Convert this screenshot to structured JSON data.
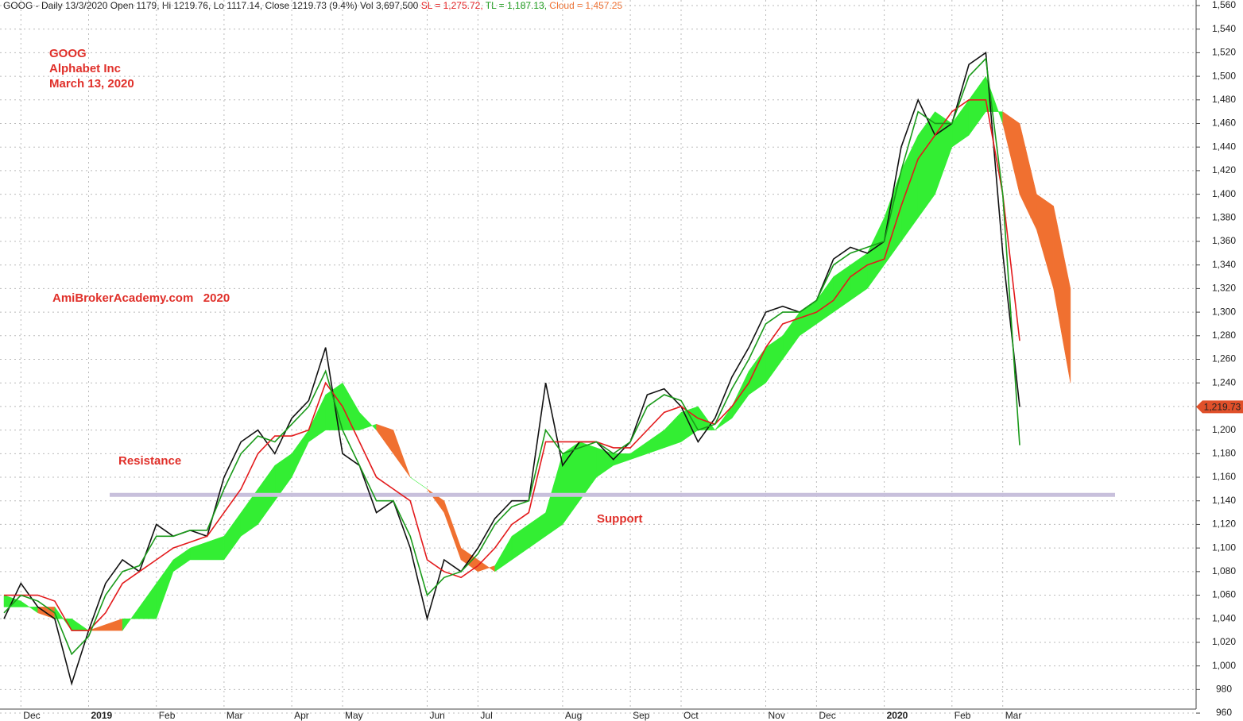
{
  "chart_data": {
    "type": "line",
    "title": "GOOG - Daily 13/3/2020 Open 1179, Hi 1219.76, Lo 1117.14, Close 1219.73 (9.4%) Vol 3,697,500",
    "annotations": [
      "GOOG",
      "Alphabet Inc",
      "March 13, 2020",
      "AmiBrokerAcademy.com   2020",
      "Resistance",
      "Support"
    ],
    "categories": [
      null,
      "Dec",
      null,
      null,
      null,
      "2019",
      null,
      null,
      null,
      "Feb",
      null,
      null,
      null,
      "Mar",
      null,
      null,
      null,
      "Apr",
      null,
      null,
      "May",
      null,
      null,
      null,
      null,
      "Jun",
      null,
      null,
      "Jul",
      null,
      null,
      null,
      null,
      "Aug",
      null,
      null,
      null,
      "Sep",
      null,
      null,
      "Oct",
      null,
      null,
      null,
      null,
      "Nov",
      null,
      null,
      "Dec",
      null,
      null,
      null,
      "2020",
      null,
      null,
      null,
      "Feb",
      null,
      null,
      "Mar",
      null,
      null,
      null,
      null
    ],
    "price": {
      "color": "#111111",
      "values": [
        1040,
        1070,
        1050,
        1040,
        985,
        1030,
        1070,
        1090,
        1080,
        1120,
        1110,
        1115,
        1110,
        1160,
        1190,
        1200,
        1180,
        1210,
        1225,
        1270,
        1180,
        1170,
        1130,
        1140,
        1100,
        1040,
        1090,
        1080,
        1100,
        1125,
        1140,
        1140,
        1240,
        1170,
        1190,
        1190,
        1175,
        1190,
        1230,
        1235,
        1220,
        1190,
        1210,
        1245,
        1270,
        1300,
        1305,
        1300,
        1310,
        1345,
        1355,
        1350,
        1360,
        1440,
        1480,
        1450,
        1460,
        1510,
        1520,
        1350,
        1219.73,
        null,
        null,
        null
      ],
      "last_label": "1,219.73",
      "last_color": "#e0502a"
    },
    "series": [
      {
        "name": "SL = 1,275.72,",
        "color": "#e31a1c",
        "values": [
          1060,
          1060,
          1060,
          1055,
          1030,
          1030,
          1045,
          1070,
          1080,
          1090,
          1100,
          1105,
          1110,
          1130,
          1150,
          1180,
          1195,
          1195,
          1200,
          1240,
          1220,
          1190,
          1160,
          1150,
          1140,
          1090,
          1080,
          1075,
          1085,
          1100,
          1120,
          1130,
          1190,
          1190,
          1190,
          1190,
          1185,
          1185,
          1200,
          1215,
          1220,
          1210,
          1205,
          1220,
          1240,
          1270,
          1290,
          1295,
          1300,
          1310,
          1330,
          1340,
          1345,
          1390,
          1430,
          1450,
          1470,
          1480,
          1480,
          1400,
          1275.72,
          null,
          null,
          null
        ]
      },
      {
        "name": "TL = 1,187.13,",
        "color": "#1a9a1a",
        "values": [
          1045,
          1060,
          1055,
          1045,
          1010,
          1025,
          1060,
          1080,
          1085,
          1110,
          1110,
          1115,
          1115,
          1150,
          1180,
          1195,
          1190,
          1205,
          1220,
          1250,
          1200,
          1170,
          1140,
          1140,
          1110,
          1060,
          1075,
          1080,
          1095,
          1120,
          1135,
          1140,
          1200,
          1180,
          1185,
          1190,
          1180,
          1190,
          1220,
          1230,
          1225,
          1200,
          1205,
          1235,
          1260,
          1290,
          1300,
          1300,
          1310,
          1340,
          1350,
          1355,
          1360,
          1420,
          1470,
          1460,
          1460,
          1500,
          1515,
          1400,
          1187.13,
          null,
          null,
          null
        ]
      }
    ],
    "cloud": {
      "name": "Cloud = 1,457.25",
      "color": "#f07030",
      "up_color": "#33ee33",
      "down_color": "#f07030",
      "span_a": [
        1060,
        1055,
        1045,
        1040,
        1040,
        1030,
        1030,
        1030,
        1050,
        1070,
        1090,
        1100,
        1105,
        1110,
        1130,
        1150,
        1170,
        1180,
        1200,
        1230,
        1240,
        1215,
        1200,
        1180,
        1160,
        1150,
        1130,
        1090,
        1080,
        1085,
        1110,
        1120,
        1130,
        1180,
        1190,
        1185,
        1180,
        1180,
        1190,
        1200,
        1215,
        1220,
        1200,
        1220,
        1250,
        1270,
        1280,
        1300,
        1310,
        1330,
        1340,
        1350,
        1380,
        1420,
        1450,
        1470,
        1460,
        1480,
        1500,
        1460,
        1400,
        1370,
        1320,
        1240
      ],
      "span_b": [
        1050,
        1050,
        1050,
        1050,
        1030,
        1030,
        1035,
        1040,
        1040,
        1040,
        1080,
        1090,
        1090,
        1090,
        1110,
        1120,
        1140,
        1160,
        1190,
        1200,
        1200,
        1200,
        1205,
        1200,
        1160,
        1150,
        1140,
        1100,
        1090,
        1080,
        1090,
        1100,
        1110,
        1120,
        1140,
        1160,
        1170,
        1175,
        1180,
        1185,
        1190,
        1200,
        1200,
        1210,
        1230,
        1240,
        1260,
        1280,
        1290,
        1300,
        1310,
        1320,
        1340,
        1360,
        1380,
        1400,
        1440,
        1450,
        1470,
        1470,
        1460,
        1400,
        1390,
        1320
      ]
    },
    "hline": {
      "value": 1145,
      "color": "#c8c0dc"
    },
    "ylim": [
      956,
      1562
    ],
    "yticks": [
      960,
      980,
      {
        "value": 1000,
        "label": "1,000"
      },
      {
        "value": 1020,
        "label": "1,020"
      },
      {
        "value": 1040,
        "label": "1,040"
      },
      {
        "value": 1060,
        "label": "1,060"
      },
      {
        "value": 1080,
        "label": "1,080"
      },
      {
        "value": 1100,
        "label": "1,100"
      },
      {
        "value": 1120,
        "label": "1,120"
      },
      {
        "value": 1140,
        "label": "1,140"
      },
      {
        "value": 1160,
        "label": "1,160"
      },
      {
        "value": 1180,
        "label": "1,180"
      },
      {
        "value": 1200,
        "label": "1,200"
      },
      {
        "value": 1220,
        "label": "1,220"
      },
      {
        "value": 1240,
        "label": "1,240"
      },
      {
        "value": 1260,
        "label": "1,260"
      },
      {
        "value": 1280,
        "label": "1,280"
      },
      {
        "value": 1300,
        "label": "1,300"
      },
      {
        "value": 1320,
        "label": "1,320"
      },
      {
        "value": 1340,
        "label": "1,340"
      },
      {
        "value": 1360,
        "label": "1,360"
      },
      {
        "value": 1380,
        "label": "1,380"
      },
      {
        "value": 1400,
        "label": "1,400"
      },
      {
        "value": 1420,
        "label": "1,420"
      },
      {
        "value": 1440,
        "label": "1,440"
      },
      {
        "value": 1460,
        "label": "1,460"
      },
      {
        "value": 1480,
        "label": "1,480"
      },
      {
        "value": 1500,
        "label": "1,500"
      },
      {
        "value": 1520,
        "label": "1,520"
      },
      {
        "value": 1540,
        "label": "1,540"
      },
      {
        "value": 1560,
        "label": "1,560"
      }
    ],
    "grid": true
  }
}
